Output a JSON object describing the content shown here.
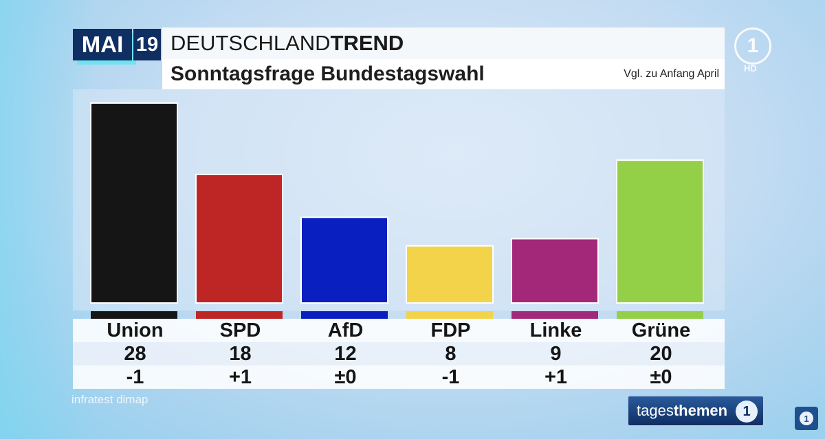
{
  "header": {
    "month": "MAI",
    "day": "19",
    "brand_light": "DEUTSCHLAND",
    "brand_bold": "TREND",
    "subtitle": "Sonntagsfrage Bundestagswahl",
    "note": "Vgl. zu Anfang April"
  },
  "chart_data": {
    "type": "bar",
    "title": "Sonntagsfrage Bundestagswahl",
    "categories": [
      "Union",
      "SPD",
      "AfD",
      "FDP",
      "Linke",
      "Grüne"
    ],
    "values": [
      28,
      18,
      12,
      8,
      9,
      20
    ],
    "value_labels": [
      "28",
      "18",
      "12",
      "8",
      "9",
      "20"
    ],
    "changes": [
      "-1",
      "+1",
      "±0",
      "-1",
      "+1",
      "±0"
    ],
    "colors": [
      "#151515",
      "#bd2624",
      "#0a1fbf",
      "#f3d34a",
      "#a3287a",
      "#94cf48"
    ],
    "ylim": [
      0,
      28
    ],
    "grid": false
  },
  "source": "infratest dimap",
  "ard": {
    "logo": "1",
    "hd": "HD"
  },
  "show": {
    "brand_light": "tages",
    "brand_bold": "themen",
    "icon": "1"
  }
}
